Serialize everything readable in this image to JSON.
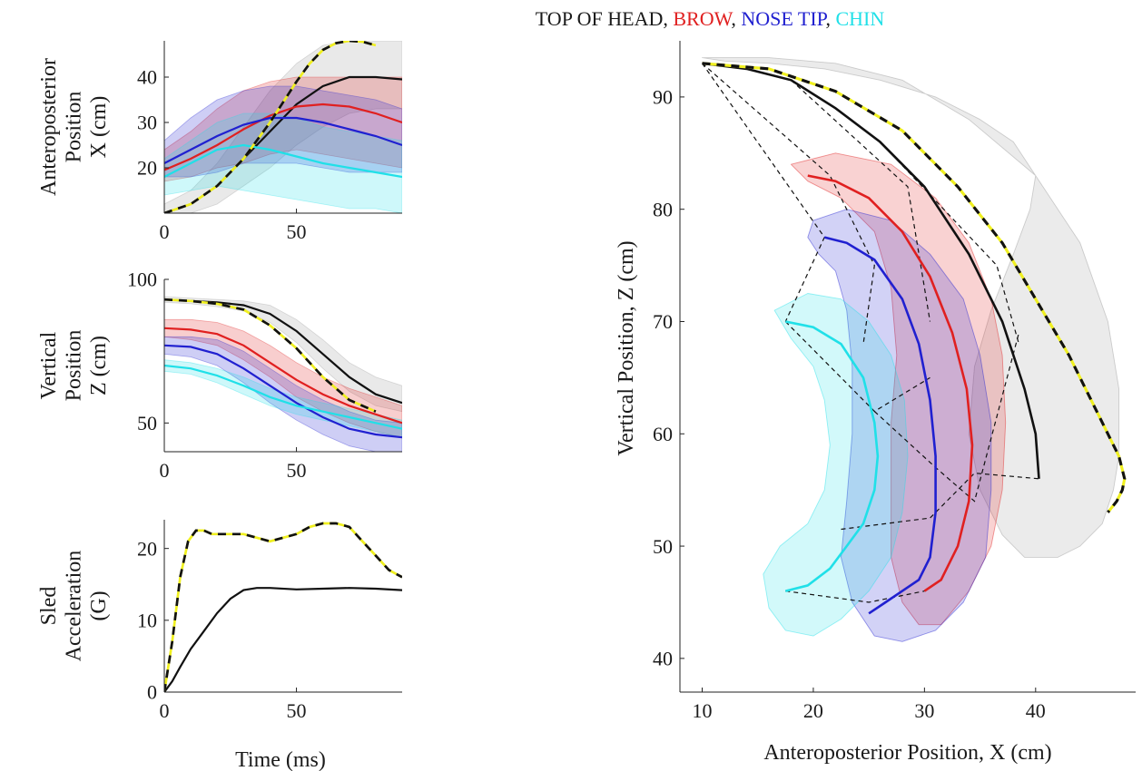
{
  "figure": {
    "title_parts": [
      {
        "text": "TOP OF HEAD",
        "color": "#1a1a1a"
      },
      {
        "text": ", ",
        "color": "#1a1a1a"
      },
      {
        "text": "BROW",
        "color": "#e02020"
      },
      {
        "text": ", ",
        "color": "#1a1a1a"
      },
      {
        "text": "NOSE TIP",
        "color": "#2020d0"
      },
      {
        "text": ", ",
        "color": "#1a1a1a"
      },
      {
        "text": "CHIN",
        "color": "#20e0e8"
      }
    ]
  },
  "colors": {
    "top_of_head": "#111111",
    "brow": "#e02020",
    "nose_tip": "#2020d0",
    "chin": "#20e0e8",
    "sled_dashed": "#111111",
    "sled_dash_fill": "#f0f020"
  },
  "chart_data": [
    {
      "id": "ap",
      "type": "line",
      "ylabel_lines": [
        "Anteroposterior",
        "Position",
        "X (cm)"
      ],
      "xlabel": "",
      "xlim": [
        0,
        90
      ],
      "ylim": [
        10,
        48
      ],
      "xticks": [
        0,
        50
      ],
      "yticks": [
        20,
        30,
        40
      ],
      "series": [
        {
          "key": "top_of_head",
          "x": [
            0,
            10,
            20,
            30,
            40,
            50,
            60,
            70,
            80,
            90
          ],
          "y": [
            10,
            12,
            16,
            22,
            28,
            34,
            38,
            40,
            40,
            39.5
          ],
          "band_lower": [
            9,
            10,
            12,
            16,
            20,
            25,
            29,
            32,
            33,
            33
          ],
          "band_upper": [
            12,
            15,
            21,
            29,
            37,
            43,
            47,
            48,
            48,
            48
          ]
        },
        {
          "key": "brow",
          "x": [
            0,
            10,
            20,
            30,
            40,
            50,
            60,
            70,
            80,
            90
          ],
          "y": [
            19.5,
            22,
            25,
            28.5,
            31.5,
            33.5,
            34,
            33.5,
            32,
            30
          ],
          "band_lower": [
            17,
            18,
            20,
            21,
            23,
            24,
            23,
            22,
            21,
            20
          ],
          "band_upper": [
            24,
            28,
            33,
            37,
            39,
            40,
            40,
            40,
            40,
            40
          ]
        },
        {
          "key": "nose_tip",
          "x": [
            0,
            10,
            20,
            30,
            40,
            50,
            60,
            70,
            80,
            90
          ],
          "y": [
            21,
            24,
            27,
            29.5,
            31,
            31,
            30,
            28.5,
            27,
            25
          ],
          "band_lower": [
            18,
            18,
            19,
            21,
            21,
            21,
            20,
            19,
            19,
            19
          ],
          "band_upper": [
            26,
            31,
            35,
            37,
            38,
            38,
            37,
            36,
            35,
            33
          ]
        },
        {
          "key": "chin",
          "x": [
            0,
            10,
            20,
            30,
            40,
            50,
            60,
            70,
            80,
            90
          ],
          "y": [
            18,
            21,
            24,
            25,
            24,
            22.5,
            21,
            20,
            19,
            18
          ],
          "band_lower": [
            14,
            15,
            16,
            15,
            14,
            13,
            12,
            11,
            11,
            10
          ],
          "band_upper": [
            22,
            26,
            30,
            32,
            32,
            31,
            29,
            28,
            27,
            26
          ]
        },
        {
          "key": "sled_dashed",
          "dashed": true,
          "x": [
            0,
            10,
            20,
            30,
            40,
            50,
            55,
            60,
            65,
            70,
            75,
            80
          ],
          "y": [
            10,
            12,
            16,
            22,
            30,
            39,
            43,
            46,
            47.5,
            48,
            47.8,
            47
          ]
        }
      ]
    },
    {
      "id": "vert",
      "type": "line",
      "ylabel_lines": [
        "Vertical",
        "Position",
        "Z (cm)"
      ],
      "xlabel": "",
      "xlim": [
        0,
        90
      ],
      "ylim": [
        40,
        100
      ],
      "xticks": [
        0,
        50
      ],
      "yticks": [
        50,
        100
      ],
      "series": [
        {
          "key": "top_of_head",
          "x": [
            0,
            10,
            20,
            30,
            40,
            50,
            60,
            70,
            80,
            90
          ],
          "y": [
            93,
            92.5,
            92,
            91,
            88,
            82,
            74,
            66,
            60,
            57
          ],
          "band_lower": [
            92,
            91.5,
            90.5,
            89,
            85,
            78,
            69,
            61,
            56,
            54
          ],
          "band_upper": [
            94,
            93.5,
            93,
            92.5,
            91,
            86,
            79,
            71,
            66,
            63
          ]
        },
        {
          "key": "brow",
          "x": [
            0,
            10,
            20,
            30,
            40,
            50,
            60,
            70,
            80,
            90
          ],
          "y": [
            83,
            82.5,
            81,
            77,
            71,
            65,
            60,
            56,
            53,
            50
          ],
          "band_lower": [
            80,
            79,
            77,
            72,
            66,
            59,
            54,
            50,
            47,
            45
          ],
          "band_upper": [
            86,
            86,
            85,
            82,
            77,
            71,
            66,
            62,
            59,
            56
          ]
        },
        {
          "key": "nose_tip",
          "x": [
            0,
            10,
            20,
            30,
            40,
            50,
            60,
            70,
            80,
            90
          ],
          "y": [
            77,
            76.5,
            74,
            69,
            63,
            57,
            52,
            48,
            46,
            45
          ],
          "band_lower": [
            74,
            73,
            70,
            64,
            57,
            51,
            46,
            42,
            40,
            40
          ],
          "band_upper": [
            80,
            80,
            79,
            75,
            69,
            63,
            58,
            54,
            51,
            50
          ]
        },
        {
          "key": "chin",
          "x": [
            0,
            10,
            20,
            30,
            40,
            50,
            60,
            70,
            80,
            90
          ],
          "y": [
            70,
            69,
            66.5,
            63,
            59,
            56,
            54,
            52,
            50,
            48
          ],
          "band_lower": [
            68,
            67,
            64,
            60,
            56,
            53,
            51,
            49,
            47,
            45
          ],
          "band_upper": [
            72,
            71,
            69,
            66,
            62,
            59,
            57,
            55,
            53,
            51
          ]
        },
        {
          "key": "sled_dashed",
          "dashed": true,
          "x": [
            0,
            10,
            20,
            30,
            40,
            50,
            60,
            70,
            80
          ],
          "y": [
            93,
            92.5,
            91.5,
            89.5,
            84,
            76,
            66,
            58,
            54
          ]
        }
      ]
    },
    {
      "id": "sled",
      "type": "line",
      "ylabel_lines": [
        "Sled",
        "Acceleration",
        "(G)"
      ],
      "xlabel": "Time (ms)",
      "xlim": [
        0,
        90
      ],
      "ylim": [
        0,
        24
      ],
      "xticks": [
        0,
        50
      ],
      "yticks": [
        0,
        10,
        20
      ],
      "series": [
        {
          "key": "top_of_head",
          "x": [
            0,
            3,
            6,
            10,
            15,
            20,
            25,
            30,
            35,
            40,
            50,
            60,
            70,
            80,
            90
          ],
          "y": [
            0,
            1.5,
            3.5,
            6,
            8.5,
            11,
            13,
            14.2,
            14.5,
            14.5,
            14.3,
            14.4,
            14.5,
            14.4,
            14.2
          ]
        },
        {
          "key": "sled_dashed",
          "dashed": true,
          "x": [
            0,
            3,
            6,
            9,
            12,
            15,
            18,
            20,
            25,
            30,
            35,
            40,
            45,
            50,
            55,
            60,
            65,
            70,
            75,
            80,
            85,
            90
          ],
          "y": [
            0,
            7,
            16,
            21,
            22.5,
            22.5,
            22,
            22,
            22,
            22,
            21.5,
            21,
            21.5,
            22,
            23,
            23.5,
            23.5,
            23,
            21,
            19,
            17,
            16
          ]
        }
      ]
    },
    {
      "id": "traj",
      "type": "line",
      "xlabel": "Anteroposterior Position, X (cm)",
      "ylabel": "Vertical Position, Z (cm)",
      "xlim": [
        8,
        49
      ],
      "ylim": [
        37,
        95
      ],
      "xticks": [
        10,
        20,
        30,
        40
      ],
      "yticks": [
        40,
        50,
        60,
        70,
        80,
        90
      ],
      "series": [
        {
          "key": "top_of_head",
          "x": [
            10,
            14,
            18,
            22,
            26,
            30,
            34,
            37,
            39,
            40,
            40.3
          ],
          "y": [
            93,
            92.5,
            91.5,
            89,
            86,
            82,
            76,
            70,
            64,
            60,
            56
          ]
        },
        {
          "key": "brow",
          "x": [
            19.5,
            22,
            25,
            28,
            30.5,
            32.5,
            33.8,
            34.3,
            34,
            33,
            31.5,
            30
          ],
          "y": [
            83,
            82.5,
            81,
            78,
            74,
            69,
            64,
            59,
            54,
            50,
            47,
            46
          ]
        },
        {
          "key": "nose_tip",
          "x": [
            21,
            23,
            25.5,
            28,
            29.5,
            30.5,
            31,
            31,
            30.5,
            29.5,
            28,
            26.5,
            25
          ],
          "y": [
            77.5,
            77,
            75.5,
            72,
            68,
            63,
            58,
            53,
            49,
            47,
            46,
            45,
            44
          ]
        },
        {
          "key": "chin",
          "x": [
            17.5,
            20,
            22.5,
            24.5,
            25.5,
            25.8,
            25.5,
            24.5,
            23,
            21.5,
            19.5,
            17.5
          ],
          "y": [
            70,
            69.5,
            68,
            65,
            61,
            58,
            55,
            52,
            50,
            48,
            46.5,
            46
          ]
        },
        {
          "key": "sled_dashed",
          "dashed": true,
          "x": [
            10,
            16,
            22,
            28,
            33,
            37,
            40,
            43,
            45,
            46.5,
            47.5,
            48,
            47.8,
            47.3,
            46.5
          ],
          "y": [
            93,
            92.5,
            90.5,
            87,
            82,
            77,
            72,
            67,
            63,
            60,
            58,
            56,
            55,
            54,
            53
          ]
        }
      ],
      "bands": [
        {
          "key": "top_of_head",
          "outline_x": [
            10,
            16,
            22,
            28,
            34,
            40,
            44,
            46.5,
            47.5,
            47.5,
            47,
            46,
            44,
            42,
            39,
            37,
            35,
            34,
            34.5,
            36,
            38,
            39.5,
            40,
            38,
            35,
            31,
            26,
            21,
            16,
            12,
            10
          ],
          "outline_y": [
            93.5,
            93.5,
            93,
            91.5,
            88,
            83,
            77,
            70,
            64,
            58,
            55,
            52,
            50,
            49,
            49,
            51,
            55,
            60,
            66,
            71,
            76,
            80,
            83,
            86,
            88,
            90,
            91.5,
            92.5,
            93,
            93.2,
            93.5
          ]
        },
        {
          "key": "brow",
          "outline_x": [
            18,
            22,
            27,
            31,
            34,
            36,
            37,
            37.3,
            37,
            36,
            34,
            31.5,
            29.5,
            28,
            27,
            27,
            27,
            27.5,
            27,
            25.5,
            22.5,
            19.5,
            18
          ],
          "outline_y": [
            84,
            85,
            84,
            81,
            77,
            72,
            67,
            61,
            55,
            50,
            46,
            43,
            43,
            45,
            49,
            55,
            61,
            67,
            73,
            78,
            81,
            82.5,
            84
          ]
        },
        {
          "key": "nose_tip",
          "outline_x": [
            20,
            23,
            27,
            30.5,
            33.5,
            35,
            36,
            36,
            35.5,
            33.5,
            31,
            28,
            25.5,
            23.5,
            22.5,
            23,
            23.5,
            23.5,
            23,
            22,
            20.5,
            19.5,
            20
          ],
          "outline_y": [
            79,
            80,
            79,
            76,
            72,
            67,
            61,
            55,
            49,
            45,
            42.5,
            41.5,
            42,
            45,
            49,
            54,
            60,
            66,
            71,
            74.5,
            76,
            77.5,
            79
          ]
        },
        {
          "key": "chin",
          "outline_x": [
            16.5,
            19.5,
            22.5,
            25,
            27,
            28.2,
            28.5,
            28,
            27,
            25,
            22.5,
            20,
            17.5,
            16,
            15.5,
            17,
            19.5,
            21,
            21.5,
            21,
            20,
            18,
            16.5
          ],
          "outline_y": [
            71,
            72.5,
            72,
            70,
            67,
            63,
            58,
            53,
            49,
            46,
            43.5,
            42,
            42.5,
            44.5,
            47.5,
            50,
            52,
            55,
            59,
            63,
            66,
            68.5,
            71
          ]
        }
      ],
      "connectors": [
        {
          "x": [
            10,
            21,
            17.5
          ],
          "y": [
            93,
            77.5,
            70
          ]
        },
        {
          "x": [
            10,
            21.5,
            25.5,
            24.5
          ],
          "y": [
            93,
            83,
            75,
            68
          ]
        },
        {
          "x": [
            18,
            28.5,
            30.5
          ],
          "y": [
            91.5,
            82,
            70
          ]
        },
        {
          "x": [
            26,
            36.5,
            38.5
          ],
          "y": [
            86,
            75,
            68
          ]
        },
        {
          "x": [
            17.5,
            25.5,
            30.5
          ],
          "y": [
            70,
            62,
            65
          ]
        },
        {
          "x": [
            25.5,
            31,
            34.5,
            38.5
          ],
          "y": [
            62,
            57,
            54,
            69
          ]
        },
        {
          "x": [
            22.5,
            30.5,
            34.5,
            40.3
          ],
          "y": [
            51.5,
            52.5,
            56.5,
            56
          ]
        },
        {
          "x": [
            17.5,
            25,
            30
          ],
          "y": [
            46,
            45,
            46
          ]
        }
      ]
    }
  ]
}
